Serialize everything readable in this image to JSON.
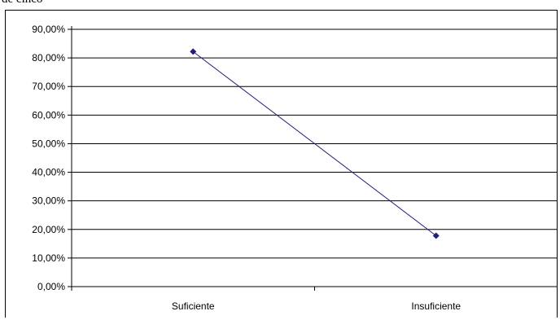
{
  "fragment_text": "de cinco",
  "chart_data": {
    "type": "line",
    "categories": [
      "Suficiente",
      "Insuficiente"
    ],
    "series": [
      {
        "values": [
          82.2,
          17.8
        ],
        "color": "#1f1f7a",
        "marker": "diamond"
      }
    ],
    "y_ticks": [
      "0,00%",
      "10,00%",
      "20,00%",
      "30,00%",
      "40,00%",
      "50,00%",
      "60,00%",
      "70,00%",
      "80,00%",
      "90,00%"
    ],
    "ylim": [
      0,
      90
    ],
    "grid": true,
    "legend": "none",
    "title": "",
    "xlabel": "",
    "ylabel": ""
  }
}
